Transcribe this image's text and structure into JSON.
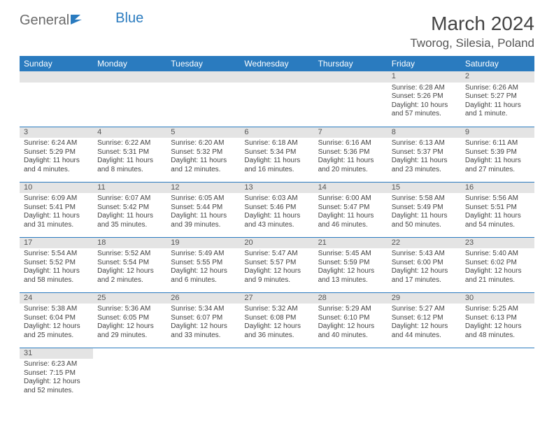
{
  "logo": {
    "textA": "General",
    "textB": "Blue"
  },
  "title": "March 2024",
  "location": "Tworog, Silesia, Poland",
  "colors": {
    "header_bg": "#2a7bbf",
    "header_text": "#ffffff",
    "daynum_bg": "#e4e4e4",
    "row_border": "#2a7bbf",
    "body_text": "#444444"
  },
  "weekdays": [
    "Sunday",
    "Monday",
    "Tuesday",
    "Wednesday",
    "Thursday",
    "Friday",
    "Saturday"
  ],
  "weeks": [
    [
      {
        "day": "",
        "sunrise": "",
        "sunset": "",
        "daylight": ""
      },
      {
        "day": "",
        "sunrise": "",
        "sunset": "",
        "daylight": ""
      },
      {
        "day": "",
        "sunrise": "",
        "sunset": "",
        "daylight": ""
      },
      {
        "day": "",
        "sunrise": "",
        "sunset": "",
        "daylight": ""
      },
      {
        "day": "",
        "sunrise": "",
        "sunset": "",
        "daylight": ""
      },
      {
        "day": "1",
        "sunrise": "Sunrise: 6:28 AM",
        "sunset": "Sunset: 5:26 PM",
        "daylight": "Daylight: 10 hours and 57 minutes."
      },
      {
        "day": "2",
        "sunrise": "Sunrise: 6:26 AM",
        "sunset": "Sunset: 5:27 PM",
        "daylight": "Daylight: 11 hours and 1 minute."
      }
    ],
    [
      {
        "day": "3",
        "sunrise": "Sunrise: 6:24 AM",
        "sunset": "Sunset: 5:29 PM",
        "daylight": "Daylight: 11 hours and 4 minutes."
      },
      {
        "day": "4",
        "sunrise": "Sunrise: 6:22 AM",
        "sunset": "Sunset: 5:31 PM",
        "daylight": "Daylight: 11 hours and 8 minutes."
      },
      {
        "day": "5",
        "sunrise": "Sunrise: 6:20 AM",
        "sunset": "Sunset: 5:32 PM",
        "daylight": "Daylight: 11 hours and 12 minutes."
      },
      {
        "day": "6",
        "sunrise": "Sunrise: 6:18 AM",
        "sunset": "Sunset: 5:34 PM",
        "daylight": "Daylight: 11 hours and 16 minutes."
      },
      {
        "day": "7",
        "sunrise": "Sunrise: 6:16 AM",
        "sunset": "Sunset: 5:36 PM",
        "daylight": "Daylight: 11 hours and 20 minutes."
      },
      {
        "day": "8",
        "sunrise": "Sunrise: 6:13 AM",
        "sunset": "Sunset: 5:37 PM",
        "daylight": "Daylight: 11 hours and 23 minutes."
      },
      {
        "day": "9",
        "sunrise": "Sunrise: 6:11 AM",
        "sunset": "Sunset: 5:39 PM",
        "daylight": "Daylight: 11 hours and 27 minutes."
      }
    ],
    [
      {
        "day": "10",
        "sunrise": "Sunrise: 6:09 AM",
        "sunset": "Sunset: 5:41 PM",
        "daylight": "Daylight: 11 hours and 31 minutes."
      },
      {
        "day": "11",
        "sunrise": "Sunrise: 6:07 AM",
        "sunset": "Sunset: 5:42 PM",
        "daylight": "Daylight: 11 hours and 35 minutes."
      },
      {
        "day": "12",
        "sunrise": "Sunrise: 6:05 AM",
        "sunset": "Sunset: 5:44 PM",
        "daylight": "Daylight: 11 hours and 39 minutes."
      },
      {
        "day": "13",
        "sunrise": "Sunrise: 6:03 AM",
        "sunset": "Sunset: 5:46 PM",
        "daylight": "Daylight: 11 hours and 43 minutes."
      },
      {
        "day": "14",
        "sunrise": "Sunrise: 6:00 AM",
        "sunset": "Sunset: 5:47 PM",
        "daylight": "Daylight: 11 hours and 46 minutes."
      },
      {
        "day": "15",
        "sunrise": "Sunrise: 5:58 AM",
        "sunset": "Sunset: 5:49 PM",
        "daylight": "Daylight: 11 hours and 50 minutes."
      },
      {
        "day": "16",
        "sunrise": "Sunrise: 5:56 AM",
        "sunset": "Sunset: 5:51 PM",
        "daylight": "Daylight: 11 hours and 54 minutes."
      }
    ],
    [
      {
        "day": "17",
        "sunrise": "Sunrise: 5:54 AM",
        "sunset": "Sunset: 5:52 PM",
        "daylight": "Daylight: 11 hours and 58 minutes."
      },
      {
        "day": "18",
        "sunrise": "Sunrise: 5:52 AM",
        "sunset": "Sunset: 5:54 PM",
        "daylight": "Daylight: 12 hours and 2 minutes."
      },
      {
        "day": "19",
        "sunrise": "Sunrise: 5:49 AM",
        "sunset": "Sunset: 5:55 PM",
        "daylight": "Daylight: 12 hours and 6 minutes."
      },
      {
        "day": "20",
        "sunrise": "Sunrise: 5:47 AM",
        "sunset": "Sunset: 5:57 PM",
        "daylight": "Daylight: 12 hours and 9 minutes."
      },
      {
        "day": "21",
        "sunrise": "Sunrise: 5:45 AM",
        "sunset": "Sunset: 5:59 PM",
        "daylight": "Daylight: 12 hours and 13 minutes."
      },
      {
        "day": "22",
        "sunrise": "Sunrise: 5:43 AM",
        "sunset": "Sunset: 6:00 PM",
        "daylight": "Daylight: 12 hours and 17 minutes."
      },
      {
        "day": "23",
        "sunrise": "Sunrise: 5:40 AM",
        "sunset": "Sunset: 6:02 PM",
        "daylight": "Daylight: 12 hours and 21 minutes."
      }
    ],
    [
      {
        "day": "24",
        "sunrise": "Sunrise: 5:38 AM",
        "sunset": "Sunset: 6:04 PM",
        "daylight": "Daylight: 12 hours and 25 minutes."
      },
      {
        "day": "25",
        "sunrise": "Sunrise: 5:36 AM",
        "sunset": "Sunset: 6:05 PM",
        "daylight": "Daylight: 12 hours and 29 minutes."
      },
      {
        "day": "26",
        "sunrise": "Sunrise: 5:34 AM",
        "sunset": "Sunset: 6:07 PM",
        "daylight": "Daylight: 12 hours and 33 minutes."
      },
      {
        "day": "27",
        "sunrise": "Sunrise: 5:32 AM",
        "sunset": "Sunset: 6:08 PM",
        "daylight": "Daylight: 12 hours and 36 minutes."
      },
      {
        "day": "28",
        "sunrise": "Sunrise: 5:29 AM",
        "sunset": "Sunset: 6:10 PM",
        "daylight": "Daylight: 12 hours and 40 minutes."
      },
      {
        "day": "29",
        "sunrise": "Sunrise: 5:27 AM",
        "sunset": "Sunset: 6:12 PM",
        "daylight": "Daylight: 12 hours and 44 minutes."
      },
      {
        "day": "30",
        "sunrise": "Sunrise: 5:25 AM",
        "sunset": "Sunset: 6:13 PM",
        "daylight": "Daylight: 12 hours and 48 minutes."
      }
    ],
    [
      {
        "day": "31",
        "sunrise": "Sunrise: 6:23 AM",
        "sunset": "Sunset: 7:15 PM",
        "daylight": "Daylight: 12 hours and 52 minutes."
      },
      {
        "day": "",
        "sunrise": "",
        "sunset": "",
        "daylight": ""
      },
      {
        "day": "",
        "sunrise": "",
        "sunset": "",
        "daylight": ""
      },
      {
        "day": "",
        "sunrise": "",
        "sunset": "",
        "daylight": ""
      },
      {
        "day": "",
        "sunrise": "",
        "sunset": "",
        "daylight": ""
      },
      {
        "day": "",
        "sunrise": "",
        "sunset": "",
        "daylight": ""
      },
      {
        "day": "",
        "sunrise": "",
        "sunset": "",
        "daylight": ""
      }
    ]
  ]
}
